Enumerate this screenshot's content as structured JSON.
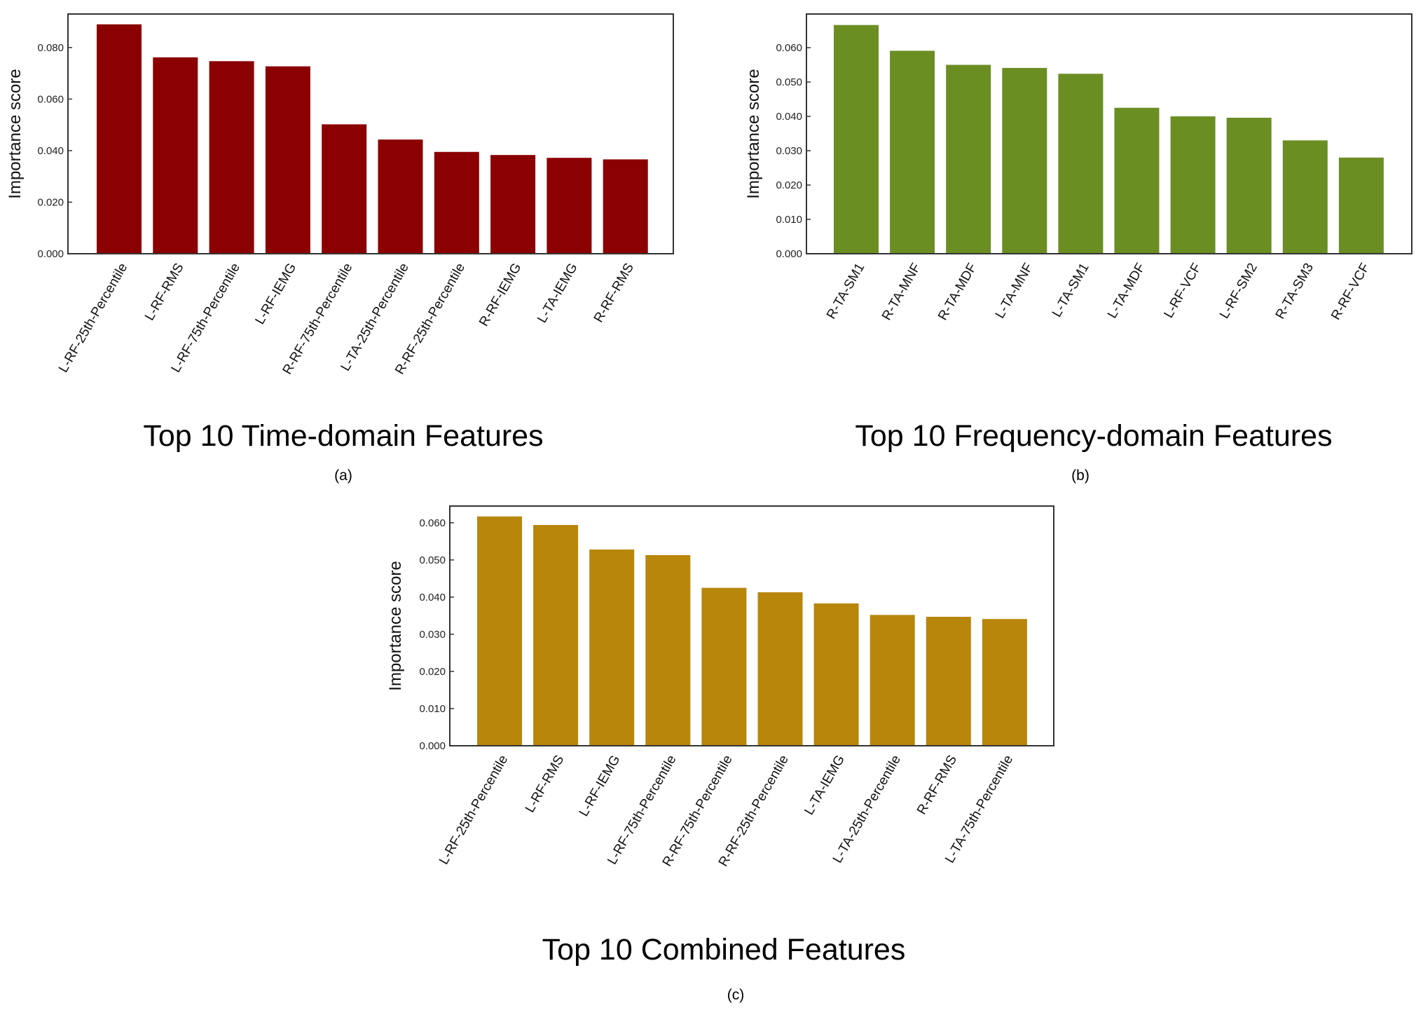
{
  "chart_data": [
    {
      "type": "bar",
      "title": "Top 10 Time-domain Features",
      "caption": "(a)",
      "ylabel": "Importance score",
      "xlabel": "",
      "ylim": [
        0,
        0.093
      ],
      "yticks": [
        "0.000",
        "0.020",
        "0.040",
        "0.060",
        "0.080"
      ],
      "color": "#8b0000",
      "grid": false,
      "categories": [
        "L-RF-25th-Percentile",
        "L-RF-RMS",
        "L-RF-75th-Percentile",
        "L-RF-IEMG",
        "R-RF-75th-Percentile",
        "L-TA-25th-Percentile",
        "R-RF-25th-Percentile",
        "R-RF-IEMG",
        "L-TA-IEMG",
        "R-RF-RMS"
      ],
      "values": [
        0.089,
        0.0762,
        0.0747,
        0.0727,
        0.0502,
        0.0443,
        0.0395,
        0.0383,
        0.0372,
        0.0366
      ]
    },
    {
      "type": "bar",
      "title": "Top 10 Frequency-domain Features",
      "caption": "(b)",
      "ylabel": "Importance score",
      "xlabel": "",
      "ylim": [
        0,
        0.0698
      ],
      "yticks": [
        "0.000",
        "0.010",
        "0.020",
        "0.030",
        "0.040",
        "0.050",
        "0.060"
      ],
      "color": "#6b8e23",
      "grid": false,
      "categories": [
        "R-TA-SM1",
        "R-TA-MNF",
        "R-TA-MDF",
        "L-TA-MNF",
        "L-TA-SM1",
        "L-TA-MDF",
        "L-RF-VCF",
        "L-RF-SM2",
        "R-TA-SM3",
        "R-RF-VCF"
      ],
      "values": [
        0.0666,
        0.0591,
        0.055,
        0.0541,
        0.0524,
        0.0425,
        0.04,
        0.0396,
        0.033,
        0.028
      ]
    },
    {
      "type": "bar",
      "title": "Top 10 Combined Features",
      "caption": "(c)",
      "ylabel": "Importance score",
      "xlabel": "",
      "ylim": [
        0,
        0.0645
      ],
      "yticks": [
        "0.000",
        "0.010",
        "0.020",
        "0.030",
        "0.040",
        "0.050",
        "0.060"
      ],
      "color": "#b8860b",
      "grid": false,
      "categories": [
        "L-RF-25th-Percentile",
        "L-RF-RMS",
        "L-RF-IEMG",
        "L-RF-75th-Percentile",
        "R-RF-75th-Percentile",
        "R-RF-25th-Percentile",
        "L-TA-IEMG",
        "L-TA-25th-Percentile",
        "R-RF-RMS",
        "L-TA-75th-Percentile"
      ],
      "values": [
        0.0617,
        0.0594,
        0.0528,
        0.0513,
        0.0425,
        0.0413,
        0.0383,
        0.0352,
        0.0347,
        0.0341
      ]
    }
  ]
}
